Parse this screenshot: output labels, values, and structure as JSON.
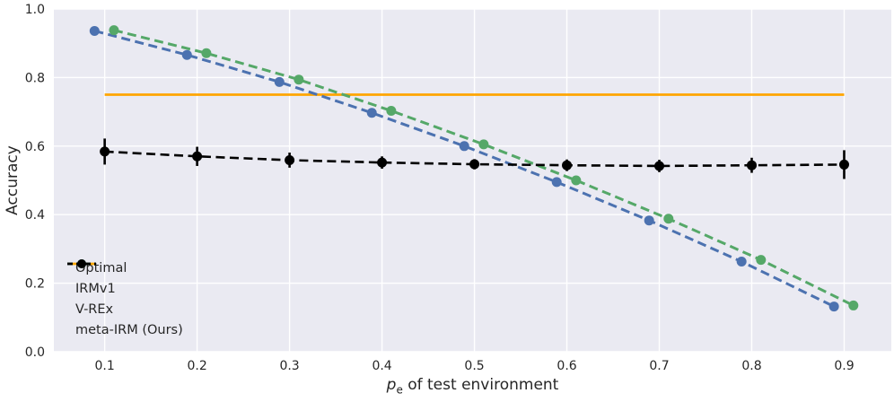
{
  "chart_data": {
    "type": "line",
    "title": "",
    "xlabel": "p_e of test environment",
    "ylabel": "Accuracy",
    "xlim": [
      0.045,
      0.951
    ],
    "ylim": [
      0.0,
      1.0
    ],
    "grid": true,
    "legend_position": "lower left",
    "x": [
      0.1,
      0.2,
      0.3,
      0.4,
      0.5,
      0.6,
      0.7,
      0.8,
      0.9
    ],
    "xticks": {
      "values": [
        0.1,
        0.2,
        0.3,
        0.4,
        0.5,
        0.6,
        0.7,
        0.8,
        0.9
      ],
      "labels": [
        "0.1",
        "0.2",
        "0.3",
        "0.4",
        "0.5",
        "0.6",
        "0.7",
        "0.8",
        "0.9"
      ]
    },
    "yticks": {
      "values": [
        0.0,
        0.2,
        0.4,
        0.6,
        0.8,
        1.0
      ],
      "labels": [
        "0.0",
        "0.2",
        "0.4",
        "0.6",
        "0.8",
        "1.0"
      ]
    },
    "series": [
      {
        "name": "Optimal",
        "type": "hline",
        "y": 0.75,
        "x_start": 0.1,
        "x_end": 0.9,
        "color": "#FFA500",
        "style": "solid",
        "marker": "none",
        "linewidth": 2.8
      },
      {
        "name": "IRMv1",
        "type": "line",
        "color": "#4C72B0",
        "style": "dashed",
        "marker": "circle",
        "x_offset": -0.011,
        "linewidth": 3,
        "values": [
          0.936,
          0.866,
          0.787,
          0.697,
          0.6,
          0.495,
          0.383,
          0.263,
          0.132
        ]
      },
      {
        "name": "V-REx",
        "type": "line",
        "color": "#55A868",
        "style": "dashed",
        "marker": "circle",
        "x_offset": 0.01,
        "linewidth": 3,
        "values": [
          0.938,
          0.871,
          0.794,
          0.703,
          0.605,
          0.5,
          0.388,
          0.268,
          0.135
        ]
      },
      {
        "name": "meta-IRM (Ours)",
        "type": "line",
        "color": "#000000",
        "style": "dashed",
        "marker": "circle",
        "x_offset": 0.0,
        "linewidth": 2.6,
        "values": [
          0.584,
          0.57,
          0.559,
          0.552,
          0.547,
          0.544,
          0.542,
          0.544,
          0.546
        ],
        "yerr": [
          0.038,
          0.028,
          0.022,
          0.018,
          0.015,
          0.017,
          0.018,
          0.022,
          0.042
        ]
      }
    ]
  },
  "axis": {
    "ylabel": "Accuracy",
    "xlabel_var": "p",
    "xlabel_sub": "e",
    "xlabel_rest": " of test environment"
  },
  "legend": {
    "items": [
      {
        "label": "Optimal"
      },
      {
        "label": "IRMv1"
      },
      {
        "label": "V-REx"
      },
      {
        "label": "meta-IRM (Ours)"
      }
    ]
  },
  "colors": {
    "figure_background": "#FFFFFF",
    "plot_background": "#EAEAF2",
    "grid": "#FFFFFF",
    "text": "#262626",
    "optimal": "#FFA500",
    "irmv1": "#4C72B0",
    "vrex": "#55A868",
    "meta_irm": "#000000"
  }
}
